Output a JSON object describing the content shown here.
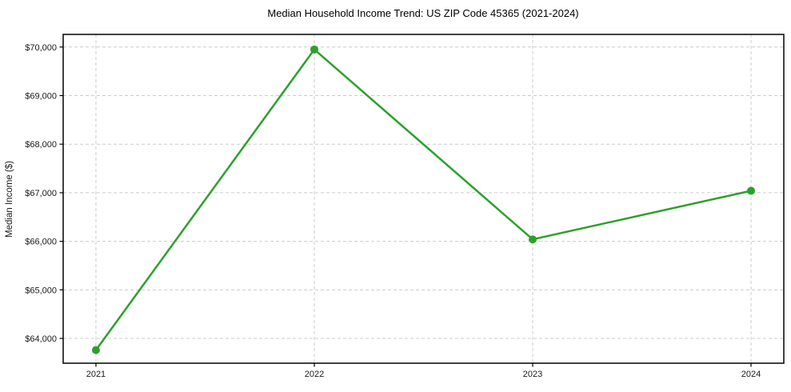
{
  "chart_data": {
    "type": "line",
    "title": "Median Household Income Trend: US ZIP Code 45365 (2021-2024)",
    "xlabel": "",
    "ylabel": "Median Income ($)",
    "categories": [
      "2021",
      "2022",
      "2023",
      "2024"
    ],
    "x": [
      2021,
      2022,
      2023,
      2024
    ],
    "series": [
      {
        "name": "Median Household Income",
        "values": [
          63760,
          69950,
          66040,
          67040
        ]
      }
    ],
    "xticks": [
      {
        "value": 2021,
        "label": "2021"
      },
      {
        "value": 2022,
        "label": "2022"
      },
      {
        "value": 2023,
        "label": "2023"
      },
      {
        "value": 2024,
        "label": "2024"
      }
    ],
    "yticks": [
      {
        "value": 64000,
        "label": "$64,000"
      },
      {
        "value": 65000,
        "label": "$65,000"
      },
      {
        "value": 66000,
        "label": "$66,000"
      },
      {
        "value": 67000,
        "label": "$67,000"
      },
      {
        "value": 68000,
        "label": "$68,000"
      },
      {
        "value": 69000,
        "label": "$69,000"
      },
      {
        "value": 70000,
        "label": "$70,000"
      }
    ],
    "xlim": [
      2020.85,
      2024.15
    ],
    "ylim": [
      63490,
      70260
    ],
    "grid": true,
    "grid_style": "dashed",
    "legend_position": "none",
    "colors": {
      "line": "#2ca02c",
      "marker": "#2ca02c",
      "grid": "#cccccc",
      "spine": "#000000",
      "background": "#ffffff",
      "text": "#1a1a1a"
    }
  }
}
